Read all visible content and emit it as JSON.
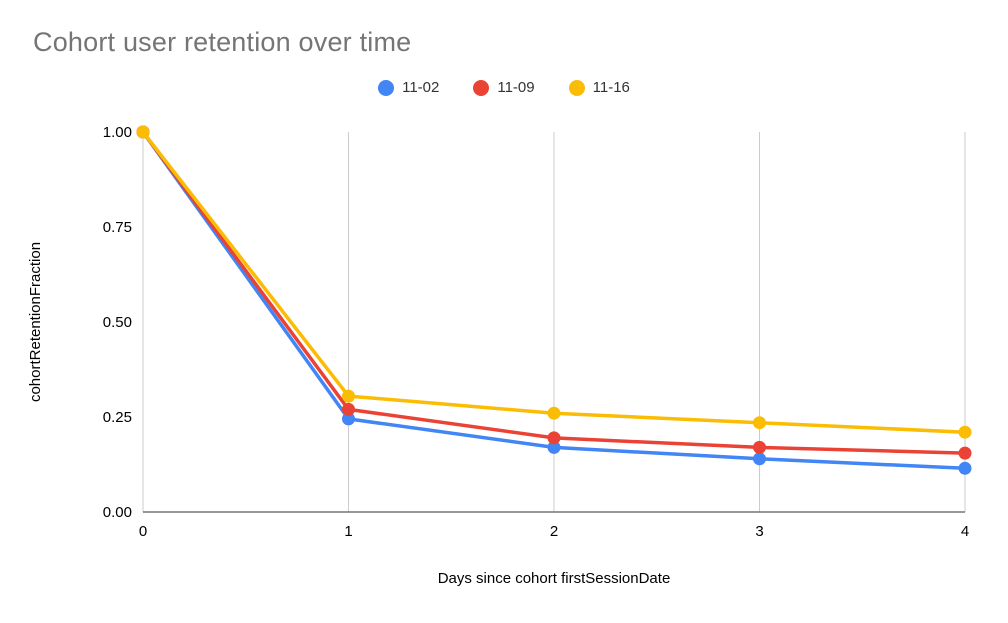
{
  "title": "Cohort user retention over time",
  "chart_data": {
    "type": "line",
    "title": "Cohort user retention over time",
    "xlabel": "Days since cohort firstSessionDate",
    "ylabel": "cohortRetentionFraction",
    "x": [
      0,
      1,
      2,
      3,
      4
    ],
    "xtick_labels": [
      "0",
      "1",
      "2",
      "3",
      "4"
    ],
    "ylim": [
      0,
      1
    ],
    "yticks": [
      0,
      0.25,
      0.5,
      0.75,
      1
    ],
    "ytick_labels": [
      "0.00",
      "0.25",
      "0.50",
      "0.75",
      "1.00"
    ],
    "grid": "vertical",
    "legend_position": "top",
    "series": [
      {
        "name": "11-02",
        "color": "#4285F4",
        "values": [
          1.0,
          0.245,
          0.17,
          0.14,
          0.115
        ]
      },
      {
        "name": "11-09",
        "color": "#EA4335",
        "values": [
          1.0,
          0.27,
          0.195,
          0.17,
          0.155
        ]
      },
      {
        "name": "11-16",
        "color": "#FBBC04",
        "values": [
          1.0,
          0.305,
          0.26,
          0.235,
          0.21
        ]
      }
    ]
  },
  "style": {
    "gridline_color": "#cccccc",
    "axis_line_color": "#757575",
    "tick_label_color": "#000000",
    "axis_title_color": "#000000",
    "title_color": "#757575"
  }
}
